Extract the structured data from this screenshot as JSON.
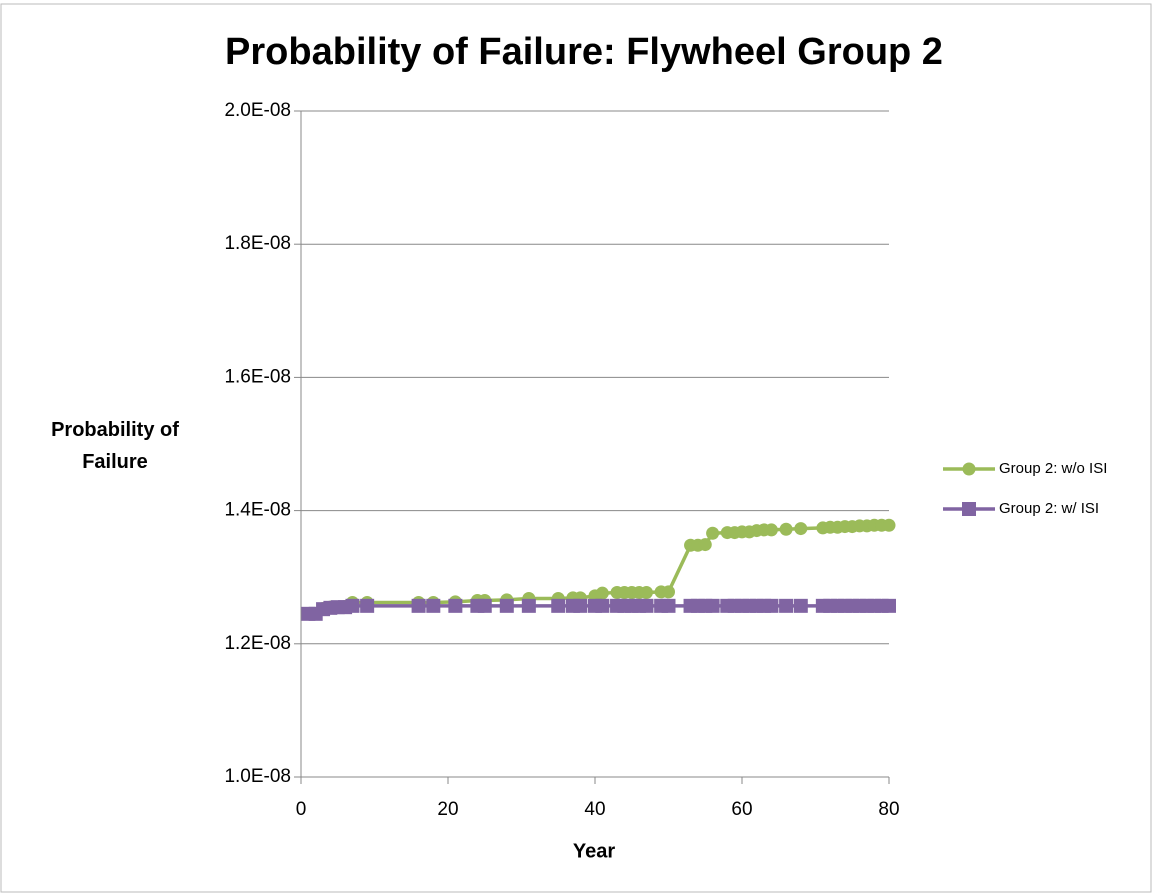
{
  "chart_data": {
    "type": "line",
    "title": "Probability of Failure: Flywheel Group 2",
    "xlabel": "Year",
    "ylabel": "Probability of Failure",
    "x": [
      1,
      2,
      3,
      4,
      5,
      6,
      7,
      9,
      16,
      18,
      21,
      24,
      25,
      28,
      31,
      35,
      37,
      38,
      40,
      41,
      43,
      44,
      45,
      46,
      47,
      49,
      50,
      53,
      54,
      55,
      56,
      58,
      59,
      60,
      61,
      62,
      63,
      64,
      66,
      68,
      71,
      72,
      73,
      74,
      75,
      76,
      77,
      78,
      79,
      80
    ],
    "series": [
      {
        "name": "Group 2: w/o ISI",
        "color": "#9bbb59",
        "marker": "circle",
        "values": [
          1.245e-08,
          1.245e-08,
          1.253e-08,
          1.255e-08,
          1.255e-08,
          1.256e-08,
          1.262e-08,
          1.262e-08,
          1.262e-08,
          1.262e-08,
          1.263e-08,
          1.265e-08,
          1.265e-08,
          1.266e-08,
          1.268e-08,
          1.268e-08,
          1.269e-08,
          1.269e-08,
          1.272e-08,
          1.276e-08,
          1.277e-08,
          1.277e-08,
          1.277e-08,
          1.277e-08,
          1.277e-08,
          1.278e-08,
          1.278e-08,
          1.348e-08,
          1.348e-08,
          1.349e-08,
          1.366e-08,
          1.367e-08,
          1.367e-08,
          1.368e-08,
          1.368e-08,
          1.37e-08,
          1.371e-08,
          1.371e-08,
          1.372e-08,
          1.373e-08,
          1.374e-08,
          1.375e-08,
          1.375e-08,
          1.376e-08,
          1.376e-08,
          1.377e-08,
          1.377e-08,
          1.378e-08,
          1.378e-08,
          1.378e-08
        ]
      },
      {
        "name": "Group 2: w/ ISI",
        "color": "#8064a2",
        "marker": "square",
        "values": [
          1.245e-08,
          1.245e-08,
          1.252e-08,
          1.254e-08,
          1.255e-08,
          1.255e-08,
          1.257e-08,
          1.257e-08,
          1.257e-08,
          1.257e-08,
          1.257e-08,
          1.257e-08,
          1.257e-08,
          1.257e-08,
          1.257e-08,
          1.257e-08,
          1.257e-08,
          1.257e-08,
          1.257e-08,
          1.257e-08,
          1.257e-08,
          1.257e-08,
          1.257e-08,
          1.257e-08,
          1.257e-08,
          1.257e-08,
          1.257e-08,
          1.257e-08,
          1.257e-08,
          1.257e-08,
          1.257e-08,
          1.257e-08,
          1.257e-08,
          1.257e-08,
          1.257e-08,
          1.257e-08,
          1.257e-08,
          1.257e-08,
          1.257e-08,
          1.257e-08,
          1.257e-08,
          1.257e-08,
          1.257e-08,
          1.257e-08,
          1.257e-08,
          1.257e-08,
          1.257e-08,
          1.257e-08,
          1.257e-08,
          1.257e-08
        ]
      }
    ],
    "xlim": [
      0,
      80
    ],
    "xticks": [
      0,
      20,
      40,
      60,
      80
    ],
    "ylim": [
      1e-08,
      2e-08
    ],
    "yticks": [
      {
        "value": 1e-08,
        "label": "1.0E-08"
      },
      {
        "value": 1.2e-08,
        "label": "1.2E-08"
      },
      {
        "value": 1.4e-08,
        "label": "1.4E-08"
      },
      {
        "value": 1.6e-08,
        "label": "1.6E-08"
      },
      {
        "value": 1.8e-08,
        "label": "1.8E-08"
      },
      {
        "value": 2e-08,
        "label": "2.0E-08"
      }
    ],
    "grid": true,
    "legend": "right"
  }
}
